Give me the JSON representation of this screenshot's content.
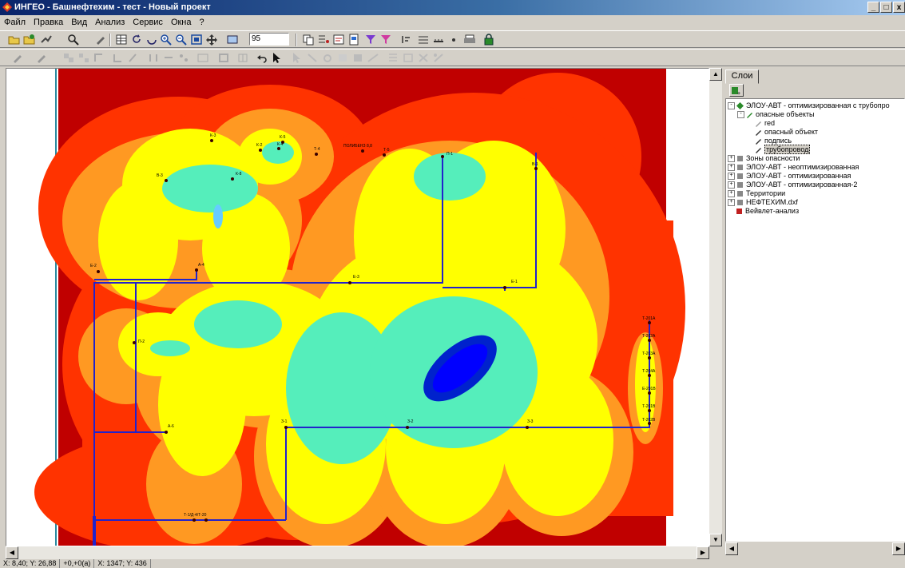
{
  "window": {
    "title": "ИНГЕО - Башнефтехим - тест - Новый проект",
    "min_label": "_",
    "max_label": "□",
    "close_label": "x"
  },
  "menu": [
    "Файл",
    "Правка",
    "Вид",
    "Анализ",
    "Сервис",
    "Окна",
    "?"
  ],
  "toolbar": {
    "zoom_value": "95"
  },
  "map": {
    "labels": {
      "k3": "К-3",
      "k2": "К-2",
      "k5": "К-5",
      "t4": "Т-4",
      "title_r": "ПОЛИБЕНЗ 8,8",
      "t5": "Т-5",
      "b3": "В-3",
      "k8": "К-8",
      "k4": "К-4",
      "p1": "П-1",
      "b1": "В-1",
      "e2": "Е-2",
      "a4": "А-4",
      "e3": "Е-3",
      "e1": "Е-1",
      "p2": "П-2",
      "a6": "А-6",
      "z1": "З-1",
      "z2": "З-2",
      "z3": "З-3",
      "r1": "Т-201А",
      "r2": "Т-202А",
      "r3": "Т-203А",
      "r4": "Т-204А",
      "r5": "Е-201В",
      "r6": "Т-201В",
      "r7": "Т-202В",
      "bottom": "Т-1/Д-4/Т-20"
    }
  },
  "panel": {
    "tab_label": "Слои",
    "layers": [
      "ЭЛОУ-АВТ - оптимизированная с трубопро",
      "опасные объекты",
      "red",
      "опасный объект",
      "подпись",
      "трубопровод",
      "Зоны опасности",
      "ЭЛОУ-АВТ - неоптимизированная",
      "ЭЛОУ-АВТ - оптимизированная",
      "ЭЛОУ-АВТ - оптимизированная-2",
      "Территории",
      "НЕФТЕХИМ.dxf",
      "Вейвлет-анализ"
    ]
  },
  "status": {
    "coords1": "X: 8,40; Y: 26,88",
    "offset": "+0,+0(a)",
    "coords2": "X: 1347; Y: 436"
  },
  "colors": {
    "dark_red": "#c00000",
    "red_orange": "#ff3300",
    "orange": "#ff9922",
    "yellow": "#ffff00",
    "aqua": "#55eebb",
    "blue": "#0022cc",
    "pipe": "#2222cc"
  }
}
